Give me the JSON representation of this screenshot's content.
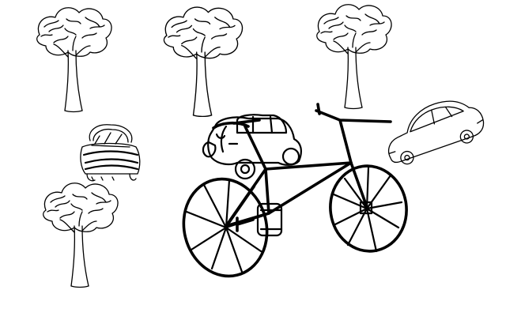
{
  "scene": {
    "background": "#ffffff",
    "ink": "#000000",
    "objects": [
      {
        "kind": "tree"
      },
      {
        "kind": "tree"
      },
      {
        "kind": "tree"
      },
      {
        "kind": "tree"
      },
      {
        "kind": "car"
      },
      {
        "kind": "car"
      },
      {
        "kind": "car"
      },
      {
        "kind": "bicycle"
      }
    ]
  }
}
